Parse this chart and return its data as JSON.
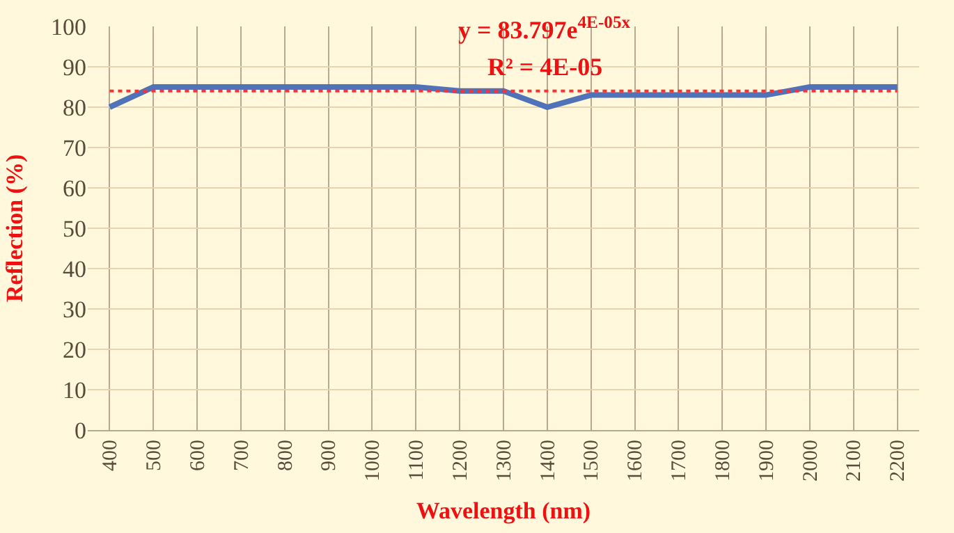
{
  "chart_data": {
    "type": "line",
    "xlabel": "Wavelength (nm)",
    "ylabel": "Reflection (%)",
    "categories": [
      "400",
      "500",
      "600",
      "700",
      "800",
      "900",
      "1000",
      "1100",
      "1200",
      "1300",
      "1400",
      "1500",
      "1600",
      "1700",
      "1800",
      "1900",
      "2000",
      "2100",
      "2200"
    ],
    "series": [
      {
        "color": "#4f72b8",
        "line_style": "solid",
        "values": [
          80,
          85,
          85,
          85,
          85,
          85,
          85,
          85,
          84,
          84,
          80,
          83,
          83,
          83,
          83,
          83,
          85,
          85,
          85
        ]
      },
      {
        "type": "line",
        "color": "#ff3030",
        "line_style": "dotted",
        "values": [
          84,
          84,
          84,
          84,
          84,
          84,
          84,
          84,
          84,
          84,
          84,
          84,
          84,
          84,
          84,
          84,
          84,
          84,
          84
        ]
      }
    ],
    "ylim": [
      0,
      100
    ],
    "yticks": [
      0,
      10,
      20,
      30,
      40,
      50,
      60,
      70,
      80,
      90,
      100
    ],
    "grid": true,
    "marker": "none",
    "annotations": [
      "y = 83.797e$^{4E-05x}$",
      "R² = 4E-05"
    ]
  }
}
